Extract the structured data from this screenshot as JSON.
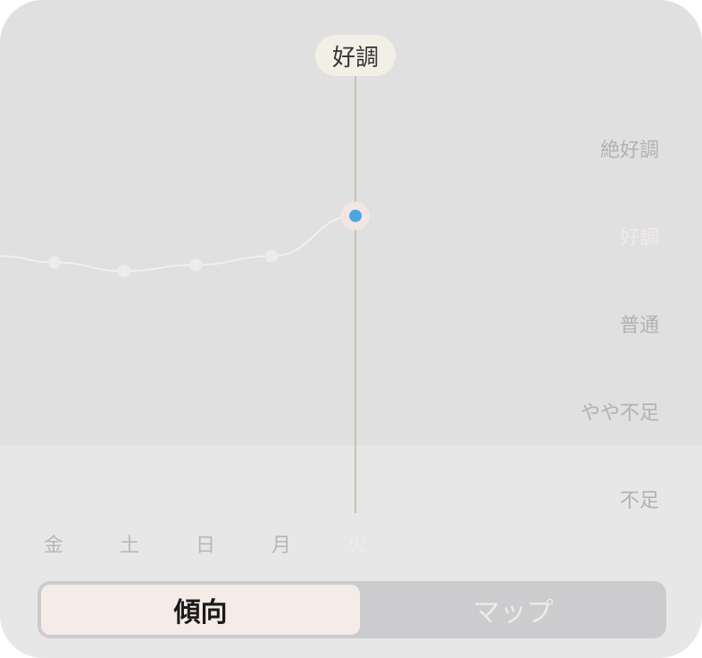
{
  "chart_data": {
    "type": "line",
    "categories": [
      "金",
      "土",
      "日",
      "月",
      "火"
    ],
    "y_levels": [
      "不足",
      "やや不足",
      "普通",
      "好調",
      "絶好調"
    ],
    "values": [
      3.7,
      3.6,
      3.67,
      3.77,
      4.23
    ],
    "previous_value": 3.77,
    "ylim": [
      1,
      5
    ],
    "grid": false,
    "selected_index": 4,
    "selected_label": "好調",
    "colors": {
      "line": "#f0f0f0",
      "selected_point": "#4aa8e0",
      "cursor": "#c9bfb4"
    }
  },
  "segmented": {
    "options": [
      "傾向",
      "マップ"
    ],
    "selected": "傾向"
  }
}
